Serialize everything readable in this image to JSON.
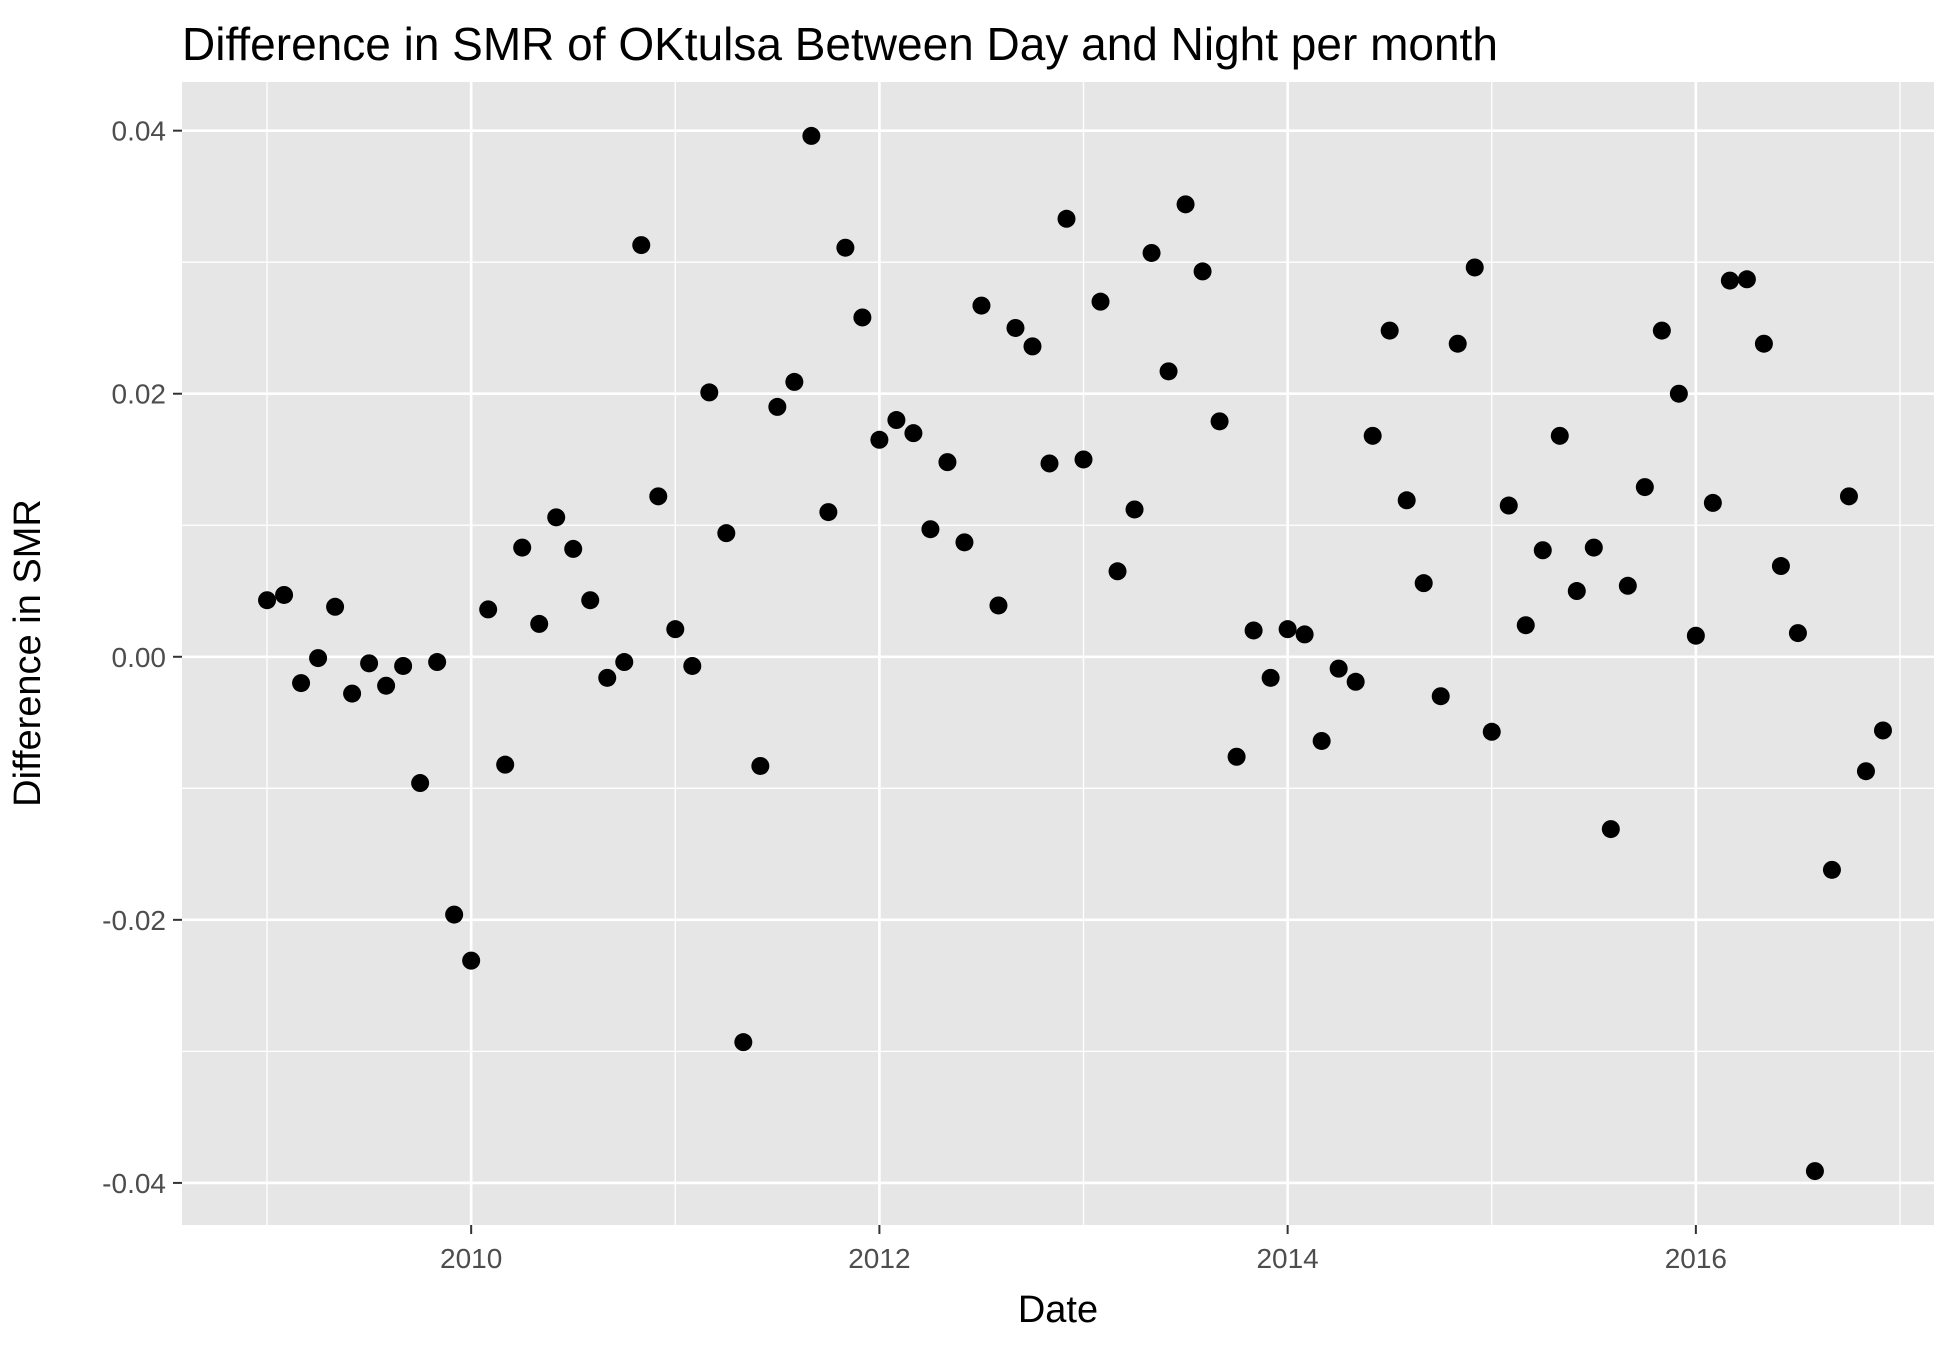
{
  "chart_data": {
    "type": "scatter",
    "title": "Difference in SMR of OKtulsa Between Day and Night per month",
    "xlabel": "Date",
    "ylabel": "Difference in SMR",
    "x_ticks": [
      "2010",
      "2012",
      "2014",
      "2016"
    ],
    "y_ticks": [
      "-0.04",
      "-0.02",
      "0.00",
      "0.02",
      "0.04"
    ],
    "xlim": [
      "2008-08",
      "2017-03"
    ],
    "ylim": [
      -0.0432,
      0.0437
    ],
    "grid": true,
    "legend": "none",
    "colors": {
      "panel": "#e6e6e6",
      "grid": "#ffffff",
      "point": "#000000"
    },
    "points": [
      {
        "x": "2009-01",
        "y": 0.0043
      },
      {
        "x": "2009-02",
        "y": 0.0047
      },
      {
        "x": "2009-03",
        "y": -0.002
      },
      {
        "x": "2009-04",
        "y": -0.0001
      },
      {
        "x": "2009-05",
        "y": 0.0038
      },
      {
        "x": "2009-06",
        "y": -0.0028
      },
      {
        "x": "2009-07",
        "y": -0.0005
      },
      {
        "x": "2009-08",
        "y": -0.0022
      },
      {
        "x": "2009-09",
        "y": -0.0007
      },
      {
        "x": "2009-10",
        "y": -0.0096
      },
      {
        "x": "2009-11",
        "y": -0.0004
      },
      {
        "x": "2009-12",
        "y": -0.0196
      },
      {
        "x": "2010-01",
        "y": -0.0231
      },
      {
        "x": "2010-02",
        "y": 0.0036
      },
      {
        "x": "2010-03",
        "y": -0.0082
      },
      {
        "x": "2010-04",
        "y": 0.0083
      },
      {
        "x": "2010-05",
        "y": 0.0025
      },
      {
        "x": "2010-06",
        "y": 0.0106
      },
      {
        "x": "2010-07",
        "y": 0.0082
      },
      {
        "x": "2010-08",
        "y": 0.0043
      },
      {
        "x": "2010-09",
        "y": -0.0016
      },
      {
        "x": "2010-10",
        "y": -0.0004
      },
      {
        "x": "2010-11",
        "y": 0.0313
      },
      {
        "x": "2010-12",
        "y": 0.0122
      },
      {
        "x": "2011-01",
        "y": 0.0021
      },
      {
        "x": "2011-02",
        "y": -0.0007
      },
      {
        "x": "2011-03",
        "y": 0.0201
      },
      {
        "x": "2011-04",
        "y": 0.0094
      },
      {
        "x": "2011-05",
        "y": -0.0293
      },
      {
        "x": "2011-06",
        "y": -0.0083
      },
      {
        "x": "2011-07",
        "y": 0.019
      },
      {
        "x": "2011-08",
        "y": 0.0209
      },
      {
        "x": "2011-09",
        "y": 0.0396
      },
      {
        "x": "2011-10",
        "y": 0.011
      },
      {
        "x": "2011-11",
        "y": 0.0311
      },
      {
        "x": "2011-12",
        "y": 0.0258
      },
      {
        "x": "2012-01",
        "y": 0.0165
      },
      {
        "x": "2012-02",
        "y": 0.018
      },
      {
        "x": "2012-03",
        "y": 0.017
      },
      {
        "x": "2012-04",
        "y": 0.0097
      },
      {
        "x": "2012-05",
        "y": 0.0148
      },
      {
        "x": "2012-06",
        "y": 0.0087
      },
      {
        "x": "2012-07",
        "y": 0.0267
      },
      {
        "x": "2012-08",
        "y": 0.0039
      },
      {
        "x": "2012-09",
        "y": 0.025
      },
      {
        "x": "2012-10",
        "y": 0.0236
      },
      {
        "x": "2012-11",
        "y": 0.0147
      },
      {
        "x": "2012-12",
        "y": 0.0333
      },
      {
        "x": "2013-01",
        "y": 0.015
      },
      {
        "x": "2013-02",
        "y": 0.027
      },
      {
        "x": "2013-03",
        "y": 0.0065
      },
      {
        "x": "2013-04",
        "y": 0.0112
      },
      {
        "x": "2013-05",
        "y": 0.0307
      },
      {
        "x": "2013-06",
        "y": 0.0217
      },
      {
        "x": "2013-07",
        "y": 0.0344
      },
      {
        "x": "2013-08",
        "y": 0.0293
      },
      {
        "x": "2013-09",
        "y": 0.0179
      },
      {
        "x": "2013-10",
        "y": -0.0076
      },
      {
        "x": "2013-11",
        "y": 0.002
      },
      {
        "x": "2013-12",
        "y": -0.0016
      },
      {
        "x": "2014-01",
        "y": 0.0021
      },
      {
        "x": "2014-02",
        "y": 0.0017
      },
      {
        "x": "2014-03",
        "y": -0.0064
      },
      {
        "x": "2014-04",
        "y": -0.0009
      },
      {
        "x": "2014-05",
        "y": -0.0019
      },
      {
        "x": "2014-06",
        "y": 0.0168
      },
      {
        "x": "2014-07",
        "y": 0.0248
      },
      {
        "x": "2014-08",
        "y": 0.0119
      },
      {
        "x": "2014-09",
        "y": 0.0056
      },
      {
        "x": "2014-10",
        "y": -0.003
      },
      {
        "x": "2014-11",
        "y": 0.0238
      },
      {
        "x": "2014-12",
        "y": 0.0296
      },
      {
        "x": "2015-01",
        "y": -0.0057
      },
      {
        "x": "2015-02",
        "y": 0.0115
      },
      {
        "x": "2015-03",
        "y": 0.0024
      },
      {
        "x": "2015-04",
        "y": 0.0081
      },
      {
        "x": "2015-05",
        "y": 0.0168
      },
      {
        "x": "2015-06",
        "y": 0.005
      },
      {
        "x": "2015-07",
        "y": 0.0083
      },
      {
        "x": "2015-08",
        "y": -0.0131
      },
      {
        "x": "2015-09",
        "y": 0.0054
      },
      {
        "x": "2015-10",
        "y": 0.0129
      },
      {
        "x": "2015-11",
        "y": 0.0248
      },
      {
        "x": "2015-12",
        "y": 0.02
      },
      {
        "x": "2016-01",
        "y": 0.0016
      },
      {
        "x": "2016-02",
        "y": 0.0117
      },
      {
        "x": "2016-03",
        "y": 0.0286
      },
      {
        "x": "2016-04",
        "y": 0.0287
      },
      {
        "x": "2016-05",
        "y": 0.0238
      },
      {
        "x": "2016-06",
        "y": 0.0069
      },
      {
        "x": "2016-07",
        "y": 0.0018
      },
      {
        "x": "2016-08",
        "y": -0.0391
      },
      {
        "x": "2016-09",
        "y": -0.0162
      },
      {
        "x": "2016-10",
        "y": 0.0122
      },
      {
        "x": "2016-11",
        "y": -0.0087
      },
      {
        "x": "2016-12",
        "y": -0.0056
      }
    ]
  }
}
